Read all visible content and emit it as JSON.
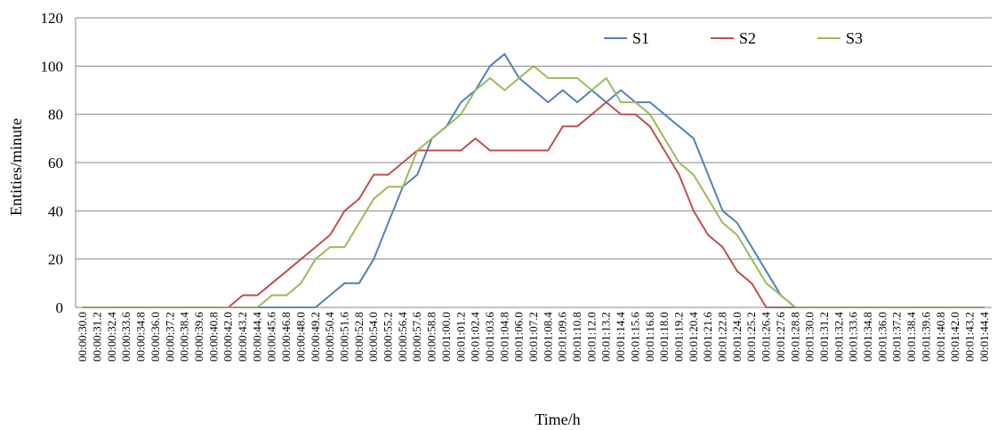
{
  "chart_data": {
    "type": "line",
    "title": "",
    "xlabel": "Time/h",
    "ylabel": "Entities/minute",
    "ylim": [
      0,
      120
    ],
    "yticks": [
      0,
      20,
      40,
      60,
      80,
      100,
      120
    ],
    "grid": "horizontal",
    "legend_position": "top-right",
    "x": [
      "00:00:30.0",
      "00:00:31.2",
      "00:00:32.4",
      "00:00:33.6",
      "00:00:34.8",
      "00:00:36.0",
      "00:00:37.2",
      "00:00:38.4",
      "00:00:39.6",
      "00:00:40.8",
      "00:00:42.0",
      "00:00:43.2",
      "00:00:44.4",
      "00:00:45.6",
      "00:00:46.8",
      "00:00:48.0",
      "00:00:49.2",
      "00:00:50.4",
      "00:00:51.6",
      "00:00:52.8",
      "00:00:54.0",
      "00:00:55.2",
      "00:00:56.4",
      "00:00:57.6",
      "00:00:58.8",
      "00:01:00.0",
      "00:01:01.2",
      "00:01:02.4",
      "00:01:03.6",
      "00:01:04.8",
      "00:01:06.0",
      "00:01:07.2",
      "00:01:08.4",
      "00:01:09.6",
      "00:01:10.8",
      "00:01:12.0",
      "00:01:13.2",
      "00:01:14.4",
      "00:01:15.6",
      "00:01:16.8",
      "00:01:18.0",
      "00:01:19.2",
      "00:01:20.4",
      "00:01:21.6",
      "00:01:22.8",
      "00:01:24.0",
      "00:01:25.2",
      "00:01:26.4",
      "00:01:27.6",
      "00:01:28.8",
      "00:01:30.0",
      "00:01:31.2",
      "00:01:32.4",
      "00:01:33.6",
      "00:01:34.8",
      "00:01:36.0",
      "00:01:37.2",
      "00:01:38.4",
      "00:01:39.6",
      "00:01:40.8",
      "00:01:42.0",
      "00:01:43.2",
      "00:01:44.4"
    ],
    "x_tick_labels": [
      "00:00:30.0",
      "00:00:31.2",
      "00:00:32.4",
      "00:00:33.6",
      "00:00:34.8",
      "00:00:36.0",
      "00:00:37.2",
      "00:00:38.4",
      "00:00:39.6",
      "00:00:40.8",
      "00:00:42.0",
      "00:00:43.2",
      "00:00:44.4",
      "00:00:45.6",
      "00:00:46.8",
      "00:00:48.0",
      "00:00:49.2",
      "00:00:50.4",
      "00:00:51.6",
      "00:00:52.8",
      "00:00:54.0",
      "00:00:55.2",
      "00:00:56.4",
      "00:00:57.6",
      "00:00:58.8",
      "00:01:00.0",
      "00:01:01.2",
      "00:01:02.4",
      "00:01:03.6",
      "00:01:04.8",
      "00:01:06.0",
      "00:01:07.2",
      "00:01:08.4",
      "00:01:09.6",
      "00:01:10.8",
      "00:01:12.0",
      "00:01:13.2",
      "00:01:14.4",
      "00:01:15.6",
      "00:01:16.8",
      "00:01:18.0",
      "00:01:19.2",
      "00:01:20.4",
      "00:01:21.6",
      "00:01:22.8",
      "00:01:24.0",
      "00:01:25.2",
      "00:01:26.4",
      "00:01:27.6",
      "00:01:28.8",
      "00:01:30.0",
      "00:01:31.2",
      "00:01:32.4",
      "00:01:33.6",
      "00:01:34.8",
      "00:01:36.0",
      "00:01:37.2",
      "00:01:38.4",
      "00:01:39.6",
      "00:01:40.8",
      "00:01:42.0",
      "00:01:43.2",
      "00:01:44.4"
    ],
    "series": [
      {
        "name": "S1",
        "color": "#4f81bd",
        "values": [
          0,
          0,
          0,
          0,
          0,
          0,
          0,
          0,
          0,
          0,
          0,
          0,
          0,
          0,
          0,
          0,
          0,
          5,
          10,
          10,
          20,
          35,
          50,
          55,
          70,
          75,
          85,
          90,
          100,
          105,
          95,
          90,
          85,
          90,
          85,
          90,
          85,
          90,
          85,
          85,
          80,
          75,
          70,
          55,
          40,
          35,
          25,
          15,
          5,
          0,
          0,
          0,
          0,
          0,
          0,
          0,
          0,
          0,
          0,
          0,
          0,
          0,
          0
        ]
      },
      {
        "name": "S2",
        "color": "#c0504d",
        "values": [
          0,
          0,
          0,
          0,
          0,
          0,
          0,
          0,
          0,
          0,
          0,
          5,
          5,
          10,
          15,
          20,
          25,
          30,
          40,
          45,
          55,
          55,
          60,
          65,
          65,
          65,
          65,
          70,
          65,
          65,
          65,
          65,
          65,
          75,
          75,
          80,
          85,
          80,
          80,
          75,
          65,
          55,
          40,
          30,
          25,
          15,
          10,
          0,
          0,
          0,
          0,
          0,
          0,
          0,
          0,
          0,
          0,
          0,
          0,
          0,
          0,
          0,
          0
        ]
      },
      {
        "name": "S3",
        "color": "#9bbb59",
        "values": [
          0,
          0,
          0,
          0,
          0,
          0,
          0,
          0,
          0,
          0,
          0,
          0,
          0,
          5,
          5,
          10,
          20,
          25,
          25,
          35,
          45,
          50,
          50,
          65,
          70,
          75,
          80,
          90,
          95,
          90,
          95,
          100,
          95,
          95,
          95,
          90,
          95,
          85,
          85,
          80,
          70,
          60,
          55,
          45,
          35,
          30,
          20,
          10,
          5,
          0,
          0,
          0,
          0,
          0,
          0,
          0,
          0,
          0,
          0,
          0,
          0,
          0,
          0
        ]
      }
    ]
  }
}
